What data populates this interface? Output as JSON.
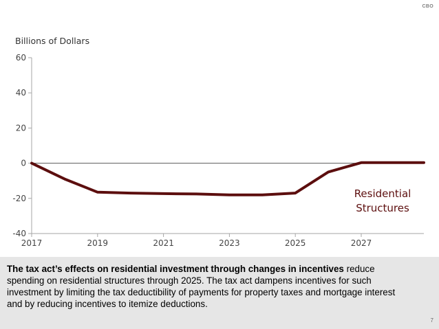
{
  "header": {
    "logo_text": "CBO"
  },
  "chart_data": {
    "type": "line",
    "ylabel": "Billions of Dollars",
    "xlabel": "",
    "ylim": [
      -40,
      60
    ],
    "yticks": [
      -40,
      -20,
      0,
      20,
      40,
      60
    ],
    "xlim": [
      2017,
      2028.9
    ],
    "xticks": [
      2017,
      2019,
      2021,
      2023,
      2025,
      2027
    ],
    "grid": false,
    "zero_line": true,
    "series": [
      {
        "name": "Residential Structures",
        "label_lines": [
          "Residential",
          "Structures"
        ],
        "color": "#5c0e0e",
        "x": [
          2017,
          2018,
          2019,
          2020,
          2021,
          2022,
          2023,
          2024,
          2025,
          2026,
          2027,
          2028,
          2028.9
        ],
        "values": [
          0,
          -9,
          -16.5,
          -17,
          -17.3,
          -17.5,
          -18,
          -18,
          -17,
          -5,
          0.3,
          0.3,
          0.3
        ]
      }
    ]
  },
  "caption": {
    "bold": "The tax act’s effects on residential investment through changes in incentives",
    "rest": " reduce spending on residential structures through 2025. The tax act dampens incentives for such investment by limiting the tax deductibility of payments for property taxes and mortgage interest and by reducing incentives to itemize deductions."
  },
  "footer": {
    "page_number": "7"
  }
}
